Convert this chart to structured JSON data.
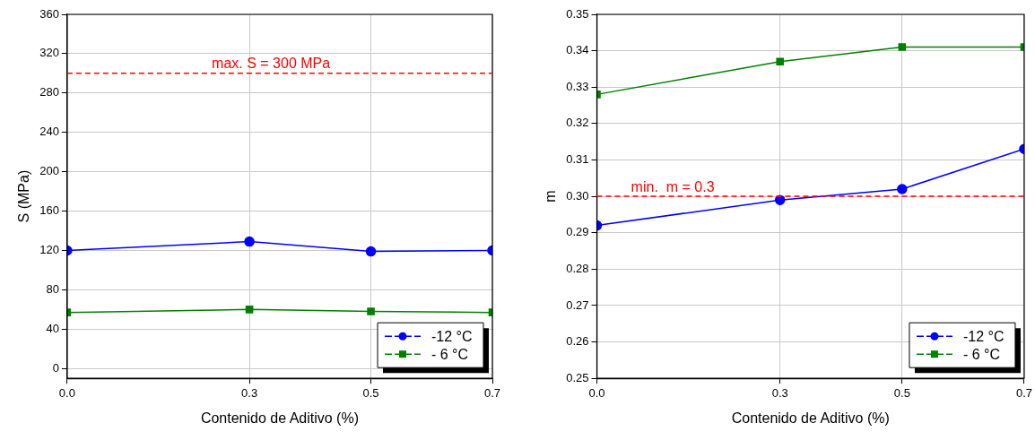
{
  "chart_data": [
    {
      "type": "line",
      "xlabel": "Contenido de Aditivo (%)",
      "ylabel": "S (MPa)",
      "x": [
        0,
        0.3,
        0.5,
        0.7
      ],
      "xlim": [
        0,
        0.7
      ],
      "xticks": [
        {
          "value": 0,
          "label": "0.0"
        },
        0.3,
        0.5,
        0.7
      ],
      "ylim": [
        -10,
        360
      ],
      "yticks": [
        0,
        40,
        80,
        120,
        160,
        200,
        240,
        280,
        320,
        360
      ],
      "grid": true,
      "legend": "bottom right",
      "line_style": "solid",
      "series": [
        {
          "name": "-12 °C",
          "color": "#0000ff",
          "marker": "circle",
          "values": [
            120,
            129,
            119,
            120
          ]
        },
        {
          "name": "- 6 °C",
          "color": "#008000",
          "marker": "square",
          "values": [
            57,
            60,
            58,
            57
          ]
        }
      ],
      "ref_lines": [
        {
          "axis": "y",
          "value": 300,
          "label": "max. S = 300 MPa",
          "color": "#ff0000",
          "line_style": "dashed"
        }
      ]
    },
    {
      "type": "line",
      "xlabel": "Contenido de Aditivo (%)",
      "ylabel": "m",
      "x": [
        0,
        0.3,
        0.5,
        0.7
      ],
      "xlim": [
        0,
        0.7
      ],
      "xticks": [
        {
          "value": 0,
          "label": "0.0"
        },
        0.3,
        0.5,
        0.7
      ],
      "ylim": [
        0.25,
        0.35
      ],
      "yticks": [
        0.25,
        0.26,
        0.27,
        0.28,
        0.29,
        {
          "value": 0.3,
          "label": "0.30"
        },
        0.31,
        0.32,
        0.33,
        0.34,
        0.35
      ],
      "grid": true,
      "legend": "bottom right",
      "line_style": "solid",
      "series": [
        {
          "name": "-12 °C",
          "color": "#0000ff",
          "marker": "circle",
          "values": [
            0.292,
            0.299,
            0.302,
            0.313
          ]
        },
        {
          "name": "- 6 °C",
          "color": "#008000",
          "marker": "square",
          "values": [
            0.328,
            0.337,
            0.341,
            0.341
          ]
        }
      ],
      "ref_lines": [
        {
          "axis": "y",
          "value": 0.3,
          "label": "min.  m = 0.3",
          "color": "#ff0000",
          "line_style": "dashed"
        }
      ]
    }
  ]
}
